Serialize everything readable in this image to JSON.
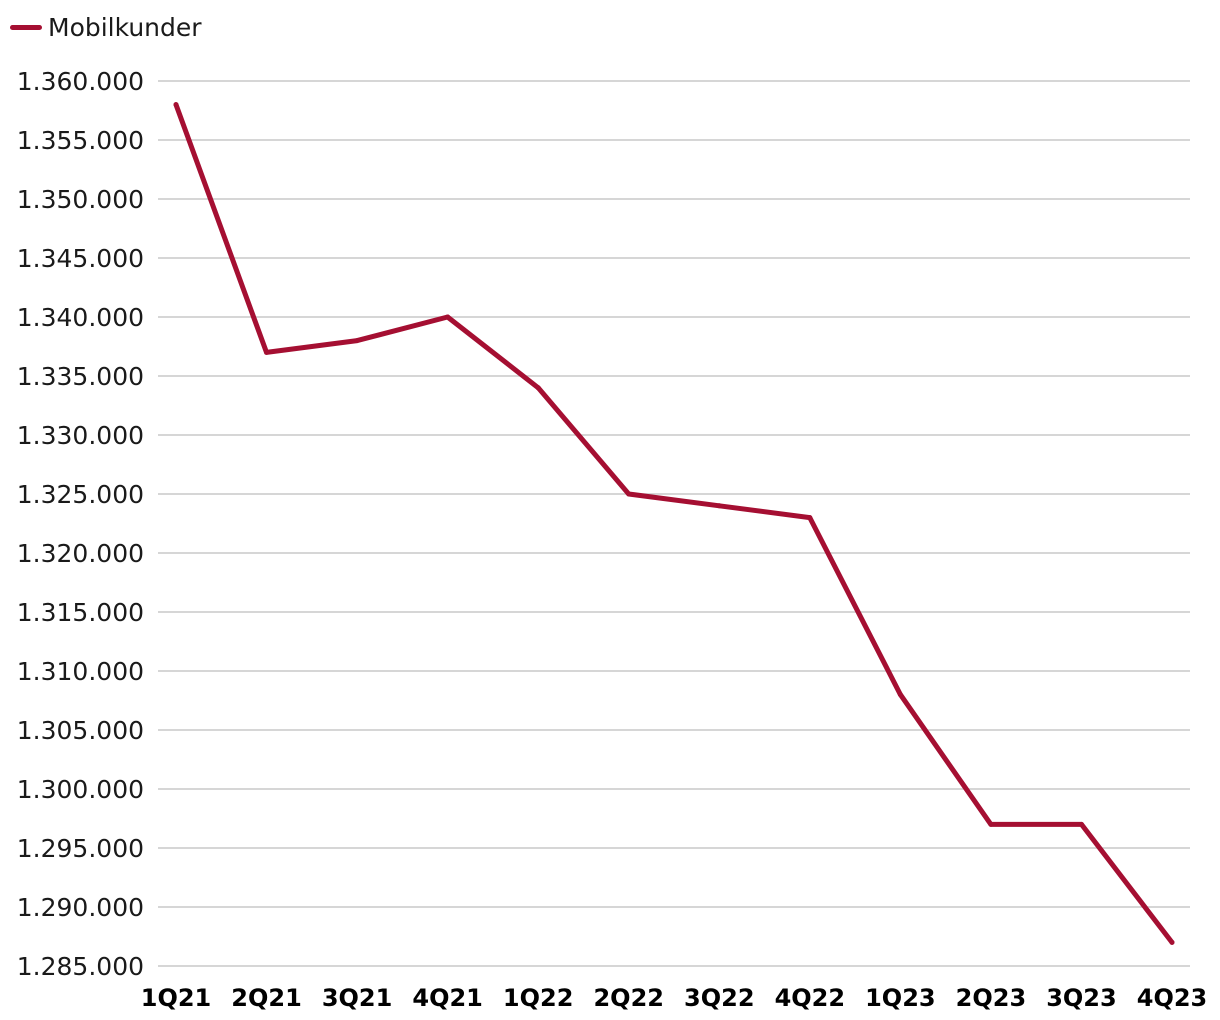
{
  "chart_data": {
    "type": "line",
    "categories": [
      "1Q21",
      "2Q21",
      "3Q21",
      "4Q21",
      "1Q22",
      "2Q22",
      "3Q22",
      "4Q22",
      "1Q23",
      "2Q23",
      "3Q23",
      "4Q23"
    ],
    "series": [
      {
        "name": "Mobilkunder",
        "color": "#a50f32",
        "values": [
          1358000,
          1337000,
          1338000,
          1340000,
          1334000,
          1325000,
          1324000,
          1323000,
          1308000,
          1297000,
          1297000,
          1287000
        ]
      }
    ],
    "ylim": [
      1285000,
      1360000
    ],
    "ytick_step": 5000,
    "ytick_labels": [
      "1.285.000",
      "1.290.000",
      "1.295.000",
      "1.300.000",
      "1.305.000",
      "1.310.000",
      "1.315.000",
      "1.320.000",
      "1.325.000",
      "1.330.000",
      "1.335.000",
      "1.340.000",
      "1.345.000",
      "1.350.000",
      "1.355.000",
      "1.360.000"
    ],
    "grid": true,
    "legend_position": "top-left",
    "gridline_color": "#c8c8c8"
  }
}
